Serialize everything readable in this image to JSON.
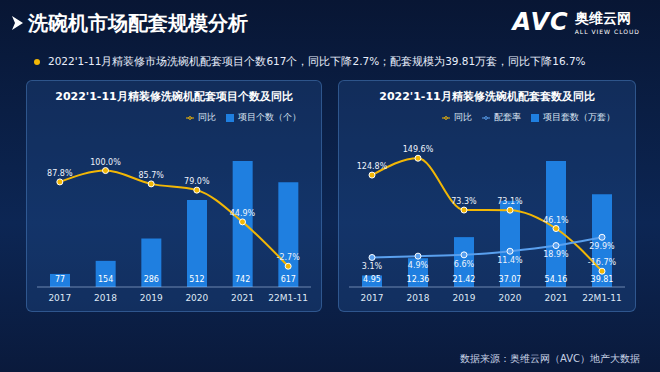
{
  "title": "洗碗机市场配套规模分析",
  "logo": {
    "brand": "AVC",
    "name": "奥维云网",
    "tagline": "ALL VIEW CLOUD"
  },
  "subtitle": "2022'1-11月精装修市场洗碗机配套项目个数617个，同比下降2.7%；配套规模为39.81万套，同比下降16.7%",
  "source": "数据来源：奥维云网（AVC）地产大数据",
  "chart_data": [
    {
      "type": "bar",
      "title": "2022'1-11月精装修洗碗机配套项目个数及同比",
      "categories": [
        "2017",
        "2018",
        "2019",
        "2020",
        "2021",
        "22M1-11"
      ],
      "series": [
        {
          "name": "项目个数（个）",
          "type": "bar",
          "color": "#1f7fe0",
          "values": [
            77,
            154,
            286,
            512,
            742,
            617
          ],
          "data_labels": true
        },
        {
          "name": "同比",
          "type": "line",
          "color": "#f2b705",
          "axis": "y2",
          "marker": "circle",
          "values": [
            87.8,
            100.0,
            85.7,
            79.0,
            44.9,
            -2.7
          ],
          "value_labels": [
            "87.8%",
            "100.0%",
            "85.7%",
            "79.0%",
            "44.9%",
            "-2.7%"
          ],
          "data_labels": true
        }
      ],
      "ylim": [
        0,
        960
      ],
      "y2lim": [
        -25,
        150
      ],
      "tick_labels": "x",
      "legend": "upper right",
      "grid": false
    },
    {
      "type": "bar",
      "title": "2022'1-11月精装修洗碗机配套套数及同比",
      "categories": [
        "2017",
        "2018",
        "2019",
        "2020",
        "2021",
        "22M1-11"
      ],
      "series": [
        {
          "name": "项目套数（万套）",
          "type": "bar",
          "color": "#1f7fe0",
          "values": [
            4.95,
            12.36,
            21.42,
            37.07,
            54.16,
            39.81
          ],
          "data_labels": true
        },
        {
          "name": "同比",
          "type": "line",
          "color": "#f2b705",
          "axis": "y2",
          "marker": "circle",
          "values": [
            124.8,
            149.6,
            73.3,
            73.1,
            46.1,
            -16.7
          ],
          "value_labels": [
            "124.8%",
            "149.6%",
            "73.3%",
            "73.1%",
            "46.1%",
            "-16.7%"
          ],
          "data_labels": true
        },
        {
          "name": "配套率",
          "type": "line",
          "color": "#5aa0ee",
          "axis": "y3",
          "marker": "circle",
          "values": [
            3.1,
            4.9,
            6.6,
            11.4,
            18.9,
            29.9
          ],
          "value_labels": [
            "3.1%",
            "4.9%",
            "6.6%",
            "11.4%",
            "18.9%",
            "29.9%"
          ],
          "data_labels": true
        }
      ],
      "ylim": [
        0,
        70
      ],
      "y2lim": [
        -40,
        200
      ],
      "y3lim": [
        -36,
        180
      ],
      "tick_labels": "x",
      "legend": "upper right",
      "grid": false
    }
  ]
}
